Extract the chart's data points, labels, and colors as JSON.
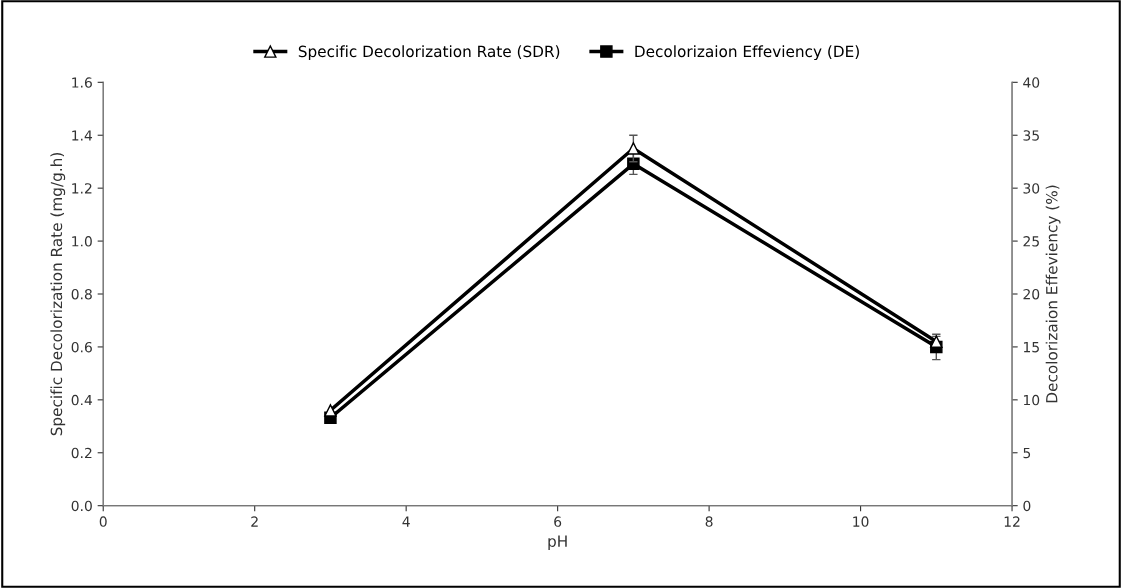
{
  "chart_data": {
    "type": "line",
    "xlabel": "pH",
    "ylabel": "Specific Decolorization Rate (mg/g.h)",
    "y2label": "Decolorizaion Effeviency (%)",
    "x": [
      3,
      7,
      11
    ],
    "series": [
      {
        "name": "Specific Decolorization Rate (SDR)",
        "color": "#000000",
        "values": [
          0.36,
          1.35,
          0.62
        ],
        "errors": [
          null,
          0.05,
          0.02
        ],
        "marker": "triangle"
      },
      {
        "name": "Decolorizaion Effeviency (DE)",
        "color": "#000000",
        "values": [
          8.3,
          32.3,
          15.0
        ],
        "errors": [
          null,
          1.0,
          1.2
        ],
        "marker": "square",
        "axis": "y2"
      }
    ],
    "xlim": [
      0,
      12
    ],
    "xticks": [
      0,
      2,
      4,
      6,
      8,
      10,
      12
    ],
    "ylim": [
      0,
      1.6
    ],
    "yticks": [
      {
        "value": 0,
        "label": "0.0"
      },
      0.2,
      0.4,
      0.6,
      0.8,
      {
        "value": 1,
        "label": "1.0"
      },
      1.2,
      1.4,
      1.6
    ],
    "y2lim": [
      0,
      40
    ],
    "y2ticks": [
      0,
      5,
      10,
      15,
      20,
      25,
      30,
      35,
      40
    ],
    "legend": "top",
    "grid": false,
    "line_style": "solid"
  }
}
